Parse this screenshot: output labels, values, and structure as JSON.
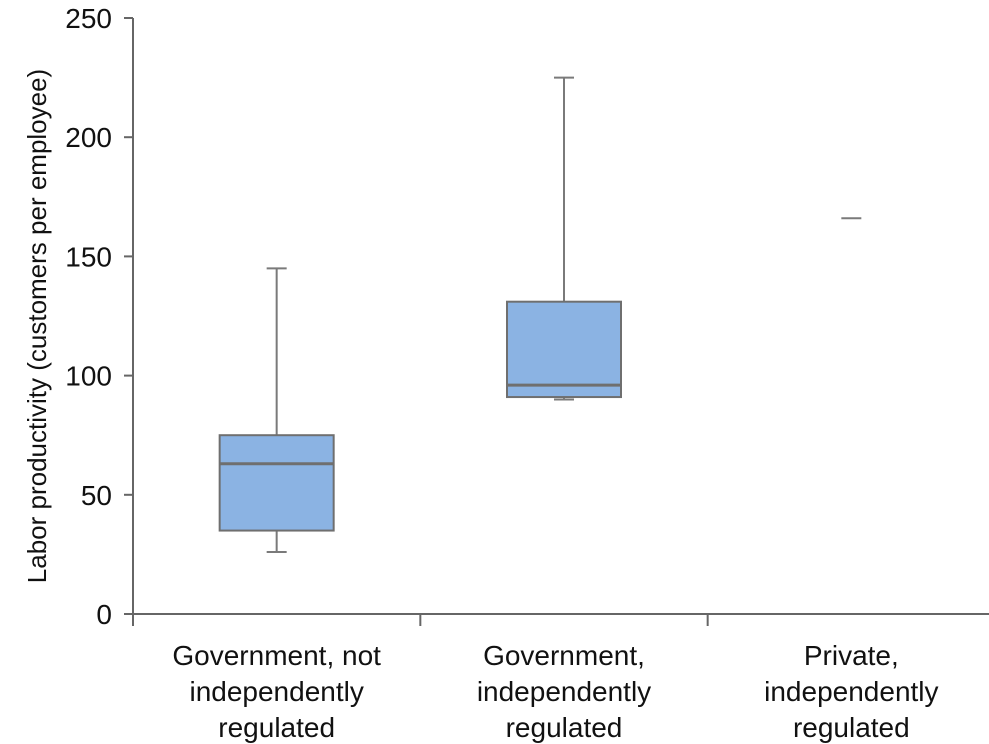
{
  "chart_data": {
    "type": "box",
    "title": "",
    "xlabel": "",
    "ylabel": "Labor productivity (customers per employee)",
    "ylim": [
      0,
      250
    ],
    "yticks": [
      0,
      50,
      100,
      150,
      200,
      250
    ],
    "grid": false,
    "legend": "none",
    "colors": {
      "box_fill": "#8bb3e3",
      "box_stroke": "#6f6f6f",
      "whisker": "#7a7a7a",
      "axis": "#666666"
    },
    "categories": [
      {
        "label_lines": [
          "Government, not",
          "independently",
          "regulated"
        ],
        "min": 26,
        "q1": 35,
        "median": 63,
        "q3": 75,
        "max": 145
      },
      {
        "label_lines": [
          "Government,",
          "independently",
          "regulated"
        ],
        "min": 90,
        "q1": 91,
        "median": 96,
        "q3": 131,
        "max": 225
      },
      {
        "label_lines": [
          "Private,",
          "independently",
          "regulated"
        ],
        "min": 166,
        "q1": 166,
        "median": 166,
        "q3": 166,
        "max": 166
      }
    ]
  }
}
